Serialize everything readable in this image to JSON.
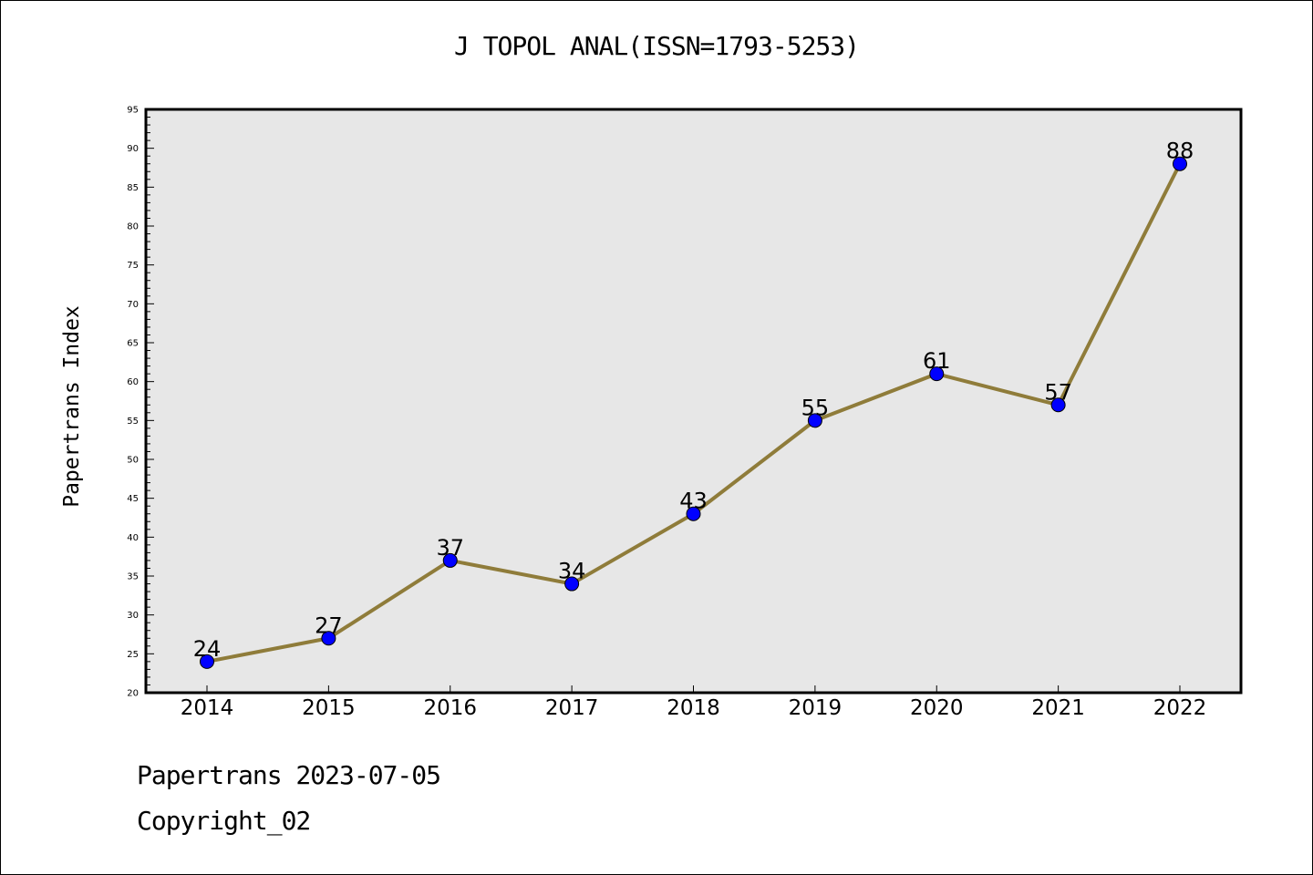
{
  "chart_data": {
    "type": "line",
    "title": "J TOPOL ANAL(ISSN=1793-5253)",
    "xlabel": "",
    "ylabel": "Papertrans Index",
    "categories": [
      "2014",
      "2015",
      "2016",
      "2017",
      "2018",
      "2019",
      "2020",
      "2021",
      "2022"
    ],
    "values": [
      24,
      27,
      37,
      34,
      43,
      55,
      61,
      57,
      88
    ],
    "data_labels": [
      "24",
      "27",
      "37",
      "34",
      "43",
      "55",
      "61",
      "57",
      "88"
    ],
    "ylim": [
      20,
      95
    ],
    "y_ticks": [
      "20",
      "25",
      "30",
      "35",
      "40",
      "45",
      "50",
      "55",
      "60",
      "65",
      "70",
      "75",
      "80",
      "85",
      "90",
      "95"
    ],
    "y_tick_values": [
      20,
      25,
      30,
      35,
      40,
      45,
      50,
      55,
      60,
      65,
      70,
      75,
      80,
      85,
      90,
      95
    ],
    "y_minor_step": 1,
    "grid": false,
    "colors": {
      "line": "#8f7c3a",
      "marker": "#0000ff",
      "plot_background": "#e7e7e7",
      "axis": "#000000"
    }
  },
  "footer": {
    "line1": "Papertrans 2023-07-05",
    "line2": "Copyright_02"
  }
}
